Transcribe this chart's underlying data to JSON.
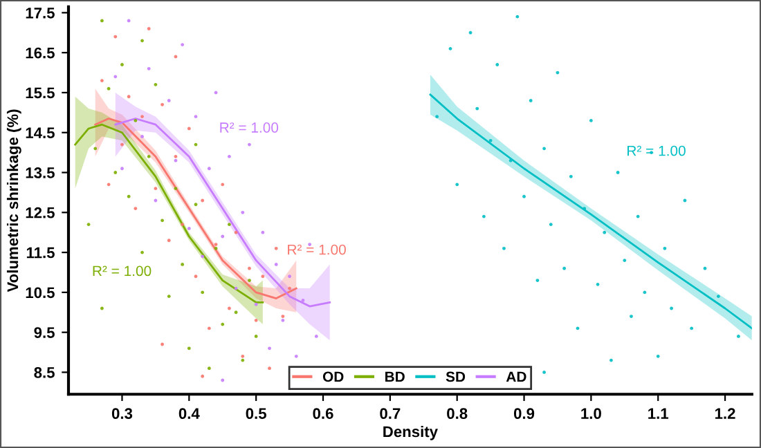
{
  "chart_data": {
    "type": "scatter",
    "xlabel": "Density",
    "ylabel": "Volumetric shrinkage (%)",
    "xlim": [
      0.22,
      1.24
    ],
    "xticks": [
      0.3,
      0.4,
      0.5,
      0.6,
      0.7,
      0.8,
      0.9,
      {
        "value": 1.0,
        "label": "1.0"
      },
      1.1,
      1.2
    ],
    "ylim": [
      7.95,
      17.65
    ],
    "yticks": [
      8.5,
      9.5,
      10.5,
      11.5,
      12.5,
      13.5,
      14.5,
      15.5,
      16.5,
      17.5
    ],
    "grid": false,
    "legend": "bottom",
    "series": [
      {
        "type": "line",
        "name": "OD",
        "color": "#f8766d",
        "line_style": "solid",
        "x": [
          0.26,
          0.28,
          0.3,
          0.35,
          0.4,
          0.45,
          0.5,
          0.53,
          0.56
        ],
        "values": [
          14.7,
          14.85,
          14.75,
          13.9,
          12.6,
          11.3,
          10.5,
          10.35,
          10.6
        ],
        "lower": [
          13.9,
          14.6,
          14.55,
          13.75,
          12.5,
          11.2,
          10.35,
          10.1,
          10.0
        ],
        "upper": [
          15.6,
          15.1,
          14.95,
          14.05,
          12.7,
          11.4,
          10.65,
          10.6,
          11.3
        ]
      },
      {
        "type": "line",
        "name": "BD",
        "color": "#7cae00",
        "line_style": "solid",
        "x": [
          0.23,
          0.25,
          0.27,
          0.3,
          0.35,
          0.4,
          0.45,
          0.5,
          0.51
        ],
        "values": [
          14.2,
          14.6,
          14.7,
          14.5,
          13.4,
          11.9,
          10.8,
          10.25,
          10.25
        ],
        "lower": [
          13.1,
          14.1,
          14.4,
          14.3,
          13.25,
          11.8,
          10.65,
          9.85,
          9.7
        ],
        "upper": [
          15.4,
          15.1,
          15.0,
          14.7,
          13.55,
          12.0,
          10.95,
          10.65,
          10.8
        ]
      },
      {
        "type": "line",
        "name": "SD",
        "color": "#00bfc4",
        "line_style": "solid",
        "x": [
          0.76,
          0.8,
          0.9,
          1.0,
          1.1,
          1.2,
          1.24
        ],
        "values": [
          15.45,
          14.85,
          13.6,
          12.45,
          11.25,
          10.1,
          9.6
        ],
        "lower": [
          14.95,
          14.55,
          13.4,
          12.3,
          11.05,
          9.85,
          9.3
        ],
        "upper": [
          15.95,
          15.15,
          13.8,
          12.6,
          11.45,
          10.35,
          9.9
        ]
      },
      {
        "type": "line",
        "name": "AD",
        "color": "#c77cff",
        "line_style": "solid",
        "x": [
          0.29,
          0.32,
          0.35,
          0.4,
          0.45,
          0.5,
          0.55,
          0.58,
          0.61
        ],
        "values": [
          14.7,
          14.85,
          14.7,
          13.9,
          12.6,
          11.3,
          10.4,
          10.15,
          10.25
        ],
        "lower": [
          13.9,
          14.55,
          14.5,
          13.75,
          12.45,
          11.15,
          10.2,
          9.7,
          9.3
        ],
        "upper": [
          15.5,
          15.15,
          14.9,
          14.05,
          12.75,
          11.45,
          10.6,
          10.6,
          11.2
        ]
      },
      {
        "marker": "circle",
        "color": "#f8766d",
        "x": [
          0.27,
          0.28,
          0.29,
          0.3,
          0.31,
          0.32,
          0.33,
          0.34,
          0.35,
          0.36,
          0.37,
          0.38,
          0.39,
          0.4,
          0.41,
          0.42,
          0.43,
          0.44,
          0.45,
          0.46,
          0.47,
          0.48,
          0.49,
          0.5,
          0.51,
          0.52,
          0.53,
          0.54,
          0.55,
          0.38,
          0.42,
          0.36
        ],
        "values": [
          15.8,
          13.2,
          16.9,
          14.2,
          15.4,
          12.6,
          14.9,
          17.1,
          13.1,
          15.2,
          11.8,
          13.9,
          12.2,
          14.6,
          10.9,
          12.8,
          9.6,
          11.7,
          13.2,
          10.1,
          12.0,
          8.9,
          11.1,
          9.8,
          10.9,
          8.6,
          11.6,
          9.9,
          10.6,
          16.4,
          8.4,
          9.2
        ]
      },
      {
        "marker": "circle",
        "color": "#7cae00",
        "x": [
          0.25,
          0.26,
          0.27,
          0.28,
          0.29,
          0.3,
          0.31,
          0.32,
          0.33,
          0.34,
          0.35,
          0.36,
          0.37,
          0.38,
          0.39,
          0.4,
          0.41,
          0.42,
          0.43,
          0.44,
          0.45,
          0.46,
          0.47,
          0.48,
          0.49,
          0.5,
          0.27,
          0.33,
          0.41
        ],
        "values": [
          12.2,
          14.1,
          17.3,
          15.6,
          13.5,
          16.2,
          12.9,
          14.8,
          11.5,
          13.9,
          15.7,
          12.3,
          10.4,
          13.1,
          11.2,
          9.1,
          12.7,
          10.5,
          8.6,
          11.6,
          9.7,
          12.2,
          10.0,
          8.8,
          10.8,
          9.4,
          10.1,
          16.8,
          14.2
        ]
      },
      {
        "marker": "circle",
        "color": "#00bfc4",
        "x": [
          0.77,
          0.79,
          0.8,
          0.82,
          0.83,
          0.84,
          0.85,
          0.86,
          0.87,
          0.88,
          0.89,
          0.9,
          0.91,
          0.92,
          0.93,
          0.94,
          0.95,
          0.96,
          0.97,
          0.98,
          0.99,
          1.0,
          1.01,
          1.02,
          1.03,
          1.04,
          1.05,
          1.06,
          1.07,
          1.08,
          1.09,
          1.1,
          1.11,
          1.12,
          1.14,
          1.15,
          1.17,
          1.19,
          1.22,
          0.93
        ],
        "values": [
          14.9,
          16.6,
          13.2,
          17.0,
          15.1,
          12.4,
          14.3,
          16.2,
          11.6,
          13.8,
          17.4,
          12.9,
          15.3,
          10.8,
          14.1,
          12.2,
          16.0,
          11.1,
          13.4,
          9.6,
          12.6,
          14.8,
          10.7,
          12.0,
          8.8,
          13.5,
          11.3,
          9.9,
          12.4,
          10.5,
          14.0,
          8.9,
          11.6,
          10.1,
          12.8,
          9.6,
          11.1,
          10.4,
          9.4,
          8.5
        ]
      },
      {
        "marker": "circle",
        "color": "#c77cff",
        "x": [
          0.29,
          0.3,
          0.31,
          0.33,
          0.34,
          0.35,
          0.37,
          0.38,
          0.39,
          0.4,
          0.41,
          0.42,
          0.43,
          0.44,
          0.45,
          0.46,
          0.47,
          0.48,
          0.49,
          0.5,
          0.51,
          0.52,
          0.53,
          0.54,
          0.55,
          0.56,
          0.57,
          0.58,
          0.59,
          0.45
        ],
        "values": [
          15.9,
          13.6,
          17.3,
          14.4,
          16.1,
          12.8,
          15.3,
          13.8,
          16.7,
          12.1,
          14.9,
          11.4,
          13.6,
          15.5,
          11.9,
          13.9,
          10.6,
          12.5,
          14.2,
          10.2,
          12.0,
          9.1,
          11.2,
          9.8,
          10.9,
          8.9,
          10.3,
          11.7,
          9.4,
          8.3
        ]
      }
    ],
    "annotations": [
      "R² = 1.00",
      "R² = 1.00",
      "R² = 1.00",
      "R² = 1.00"
    ]
  }
}
